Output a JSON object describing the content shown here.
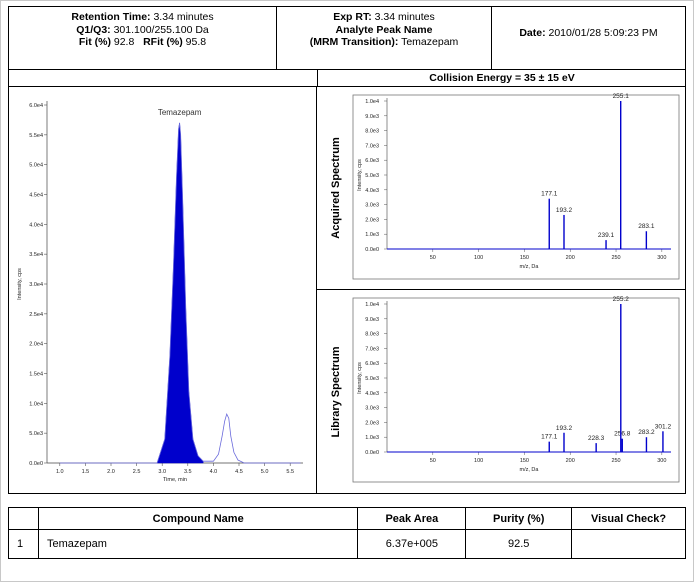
{
  "header": {
    "retention_time_label": "Retention Time:",
    "retention_time_value": "3.34 minutes",
    "q1q3_label": "Q1/Q3:",
    "q1q3_value": "301.100/255.100 Da",
    "fit_label": "Fit (%)",
    "fit_value": "92.8",
    "rfit_label": "RFit (%)",
    "rfit_value": "95.8",
    "exp_rt_label": "Exp RT:",
    "exp_rt_value": "3.34 minutes",
    "analyte_peak_name_label": "Analyte Peak Name",
    "mrm_transition_label": "(MRM Transition):",
    "mrm_transition_value": "Temazepam",
    "date_label": "Date:",
    "date_value": "2010/01/28 5:09:23 PM"
  },
  "collision_energy": "Collision Energy = 35 ± 15 eV",
  "panels": {
    "acquired_label": "Acquired Spectrum",
    "library_label": "Library Spectrum"
  },
  "chart_data": [
    {
      "type": "line",
      "name": "chromatogram",
      "peak_label": "Temazepam",
      "xlabel": "Time, min",
      "ylabel": "Intensity, cps",
      "xlim": [
        0.75,
        5.75
      ],
      "ylim": [
        0,
        60000
      ],
      "x_ticks": [
        "1.0",
        "1.5",
        "2.0",
        "2.5",
        "3.0",
        "3.5",
        "4.0",
        "4.5",
        "5.0",
        "5.5"
      ],
      "y_ticks": [
        "0.0e0",
        "5.0e3",
        "1.0e4",
        "1.5e4",
        "2.0e4",
        "2.5e4",
        "3.0e4",
        "3.5e4",
        "4.0e4",
        "4.5e4",
        "5.0e4",
        "5.5e4",
        "6.0e4"
      ],
      "colors": {
        "filled_peak": "#0000cc",
        "trace": "#6a6adc"
      },
      "series": [
        {
          "x": [
            1.0,
            2.9,
            3.05,
            3.15,
            3.22,
            3.28,
            3.32,
            3.34,
            3.36,
            3.4,
            3.46,
            3.52,
            3.6,
            3.7,
            3.8,
            4.0,
            4.1,
            4.17,
            4.22,
            4.26,
            4.3,
            4.34,
            4.4,
            4.48,
            4.6,
            5.7
          ],
          "y": [
            0,
            0,
            4000,
            18000,
            33000,
            48000,
            56000,
            57000,
            55000,
            44000,
            26000,
            12000,
            4000,
            1200,
            300,
            300,
            1500,
            4500,
            7000,
            8200,
            7500,
            4500,
            1800,
            500,
            0,
            0
          ]
        }
      ]
    },
    {
      "type": "bar",
      "name": "acquired_spectrum",
      "xlabel": "m/z, Da",
      "ylabel": "Intensity, cps",
      "xlim": [
        0,
        310
      ],
      "ylim": [
        0,
        10000
      ],
      "x_ticks": [
        "50",
        "100",
        "150",
        "200",
        "250",
        "300"
      ],
      "y_ticks": [
        "0.0e0",
        "1.0e3",
        "2.0e3",
        "3.0e3",
        "4.0e3",
        "5.0e3",
        "6.0e3",
        "7.0e3",
        "8.0e3",
        "9.0e3",
        "1.0e4"
      ],
      "peaks": [
        {
          "mz": 177.1,
          "intensity": 3400,
          "label": "177.1"
        },
        {
          "mz": 193.2,
          "intensity": 2300,
          "label": "193.2"
        },
        {
          "mz": 239.1,
          "intensity": 600,
          "label": "239.1"
        },
        {
          "mz": 255.1,
          "intensity": 10000,
          "label": "255.1"
        },
        {
          "mz": 283.1,
          "intensity": 1200,
          "label": "283.1"
        }
      ]
    },
    {
      "type": "bar",
      "name": "library_spectrum",
      "xlabel": "m/z, Da",
      "ylabel": "Intensity, cps",
      "xlim": [
        0,
        310
      ],
      "ylim": [
        0,
        10000
      ],
      "x_ticks": [
        "50",
        "100",
        "150",
        "200",
        "250",
        "300"
      ],
      "y_ticks": [
        "0.0e0",
        "1.0e3",
        "2.0e3",
        "3.0e3",
        "4.0e3",
        "5.0e3",
        "6.0e3",
        "7.0e3",
        "8.0e3",
        "9.0e3",
        "1.0e4"
      ],
      "peaks": [
        {
          "mz": 177.1,
          "intensity": 700,
          "label": "177.1"
        },
        {
          "mz": 193.2,
          "intensity": 1300,
          "label": "193.2"
        },
        {
          "mz": 228.3,
          "intensity": 600,
          "label": "228.3"
        },
        {
          "mz": 256.8,
          "intensity": 900,
          "label": "256.8"
        },
        {
          "mz": 255.2,
          "intensity": 10000,
          "label": "255.2"
        },
        {
          "mz": 283.2,
          "intensity": 1000,
          "label": "283.2"
        },
        {
          "mz": 301.2,
          "intensity": 1400,
          "label": "301.2"
        }
      ]
    }
  ],
  "table": {
    "headers": [
      "",
      "Compound Name",
      "Peak Area",
      "Purity (%)",
      "Visual Check?"
    ],
    "rows": [
      [
        "1",
        "Temazepam",
        "6.37e+005",
        "92.5",
        ""
      ]
    ]
  }
}
